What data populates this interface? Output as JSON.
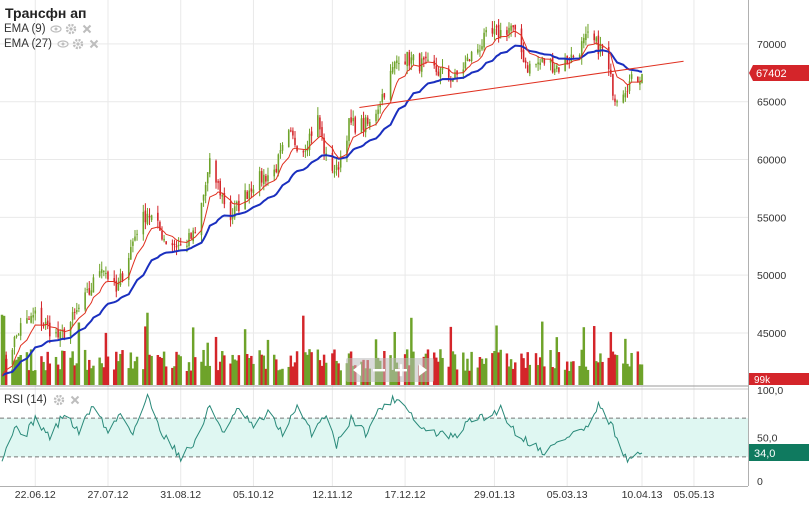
{
  "title": "Трансфн ап",
  "indicators": [
    {
      "label": "EMA (9)",
      "color": "#e03020"
    },
    {
      "label": "EMA (27)",
      "color": "#1a2fbf"
    }
  ],
  "rsi_label": "RSI (14)",
  "price_badge": "67402",
  "volume_badge": "99k",
  "rsi_badge": "34,0",
  "colors": {
    "up": "#6ea32a",
    "down": "#d4252a",
    "ema_fast": "#e03020",
    "ema_slow": "#1a2fbf",
    "rsi_line": "#2a8a7a",
    "rsi_band": "#dff7f2",
    "price_badge": "#d4252a",
    "rsi_badge": "#0f7a5f"
  },
  "chart_data": [
    {
      "type": "candlestick",
      "title": "Трансфн ап",
      "x_ticks": [
        "22.06.12",
        "27.07.12",
        "31.08.12",
        "05.10.12",
        "12.11.12",
        "17.12.12",
        "29.01.13",
        "05.03.13",
        "10.04.13",
        "05.05.13"
      ],
      "y_ticks": [
        45000,
        50000,
        55000,
        60000,
        65000,
        70000
      ],
      "ylim": [
        40500,
        73800
      ],
      "last_price": 67402,
      "series": [
        {
          "name": "EMA (9)"
        },
        {
          "name": "EMA (27)"
        }
      ],
      "close_keypoints": [
        [
          "06.06.12",
          42000
        ],
        [
          "15.06.12",
          45500
        ],
        [
          "22.06.12",
          46500
        ],
        [
          "04.07.12",
          44500
        ],
        [
          "18.07.12",
          48500
        ],
        [
          "24.07.12",
          51000
        ],
        [
          "31.07.12",
          48500
        ],
        [
          "10.08.12",
          54000
        ],
        [
          "15.08.12",
          55500
        ],
        [
          "24.08.12",
          53000
        ],
        [
          "31.08.12",
          52500
        ],
        [
          "07.09.12",
          53500
        ],
        [
          "14.09.12",
          59500
        ],
        [
          "24.09.12",
          55000
        ],
        [
          "05.10.12",
          58000
        ],
        [
          "15.10.12",
          59000
        ],
        [
          "22.10.12",
          62000
        ],
        [
          "29.10.12",
          61000
        ],
        [
          "05.11.12",
          63500
        ],
        [
          "09.11.12",
          60000
        ],
        [
          "14.11.12",
          59000
        ],
        [
          "20.11.12",
          63000
        ],
        [
          "30.11.12",
          63000
        ],
        [
          "07.12.12",
          66000
        ],
        [
          "14.12.12",
          69000
        ],
        [
          "21.12.12",
          68500
        ],
        [
          "28.12.12",
          68000
        ],
        [
          "10.01.13",
          67000
        ],
        [
          "18.01.13",
          69000
        ],
        [
          "25.01.13",
          70500
        ],
        [
          "01.02.13",
          71000
        ],
        [
          "06.02.13",
          71500
        ],
        [
          "14.02.13",
          68000
        ],
        [
          "22.02.13",
          68500
        ],
        [
          "01.03.13",
          68000
        ],
        [
          "08.03.13",
          69000
        ],
        [
          "15.03.13",
          70500
        ],
        [
          "22.03.13",
          69500
        ],
        [
          "28.03.13",
          65500
        ],
        [
          "03.04.13",
          66500
        ],
        [
          "10.04.13",
          67402
        ]
      ],
      "trendline": {
        "from": [
          "25.11.12",
          64500
        ],
        "to": [
          "30.04.13",
          68500
        ]
      }
    },
    {
      "type": "bar",
      "title": "Volume",
      "last_value": "99k"
    },
    {
      "type": "line",
      "title": "RSI (14)",
      "y_ticks": [
        "0",
        "50,0",
        "100,0"
      ],
      "ylim": [
        0,
        100
      ],
      "guides": [
        30,
        70
      ],
      "band": [
        30,
        70
      ],
      "last_value": 34.0,
      "keypoints": [
        [
          "06.06.12",
          30
        ],
        [
          "12.06.12",
          60
        ],
        [
          "18.06.12",
          55
        ],
        [
          "22.06.12",
          70
        ],
        [
          "29.06.12",
          50
        ],
        [
          "06.07.12",
          75
        ],
        [
          "13.07.12",
          55
        ],
        [
          "20.07.12",
          85
        ],
        [
          "27.07.12",
          55
        ],
        [
          "02.08.12",
          75
        ],
        [
          "08.08.12",
          55
        ],
        [
          "15.08.12",
          92
        ],
        [
          "22.08.12",
          55
        ],
        [
          "31.08.12",
          30
        ],
        [
          "07.09.12",
          45
        ],
        [
          "14.09.12",
          82
        ],
        [
          "21.09.12",
          55
        ],
        [
          "28.09.12",
          80
        ],
        [
          "05.10.12",
          60
        ],
        [
          "12.10.12",
          75
        ],
        [
          "19.10.12",
          55
        ],
        [
          "26.10.12",
          80
        ],
        [
          "02.11.12",
          55
        ],
        [
          "09.11.12",
          75
        ],
        [
          "14.11.12",
          42
        ],
        [
          "21.11.12",
          70
        ],
        [
          "28.11.12",
          55
        ],
        [
          "05.12.12",
          80
        ],
        [
          "12.12.12",
          90
        ],
        [
          "17.12.12",
          85
        ],
        [
          "24.12.12",
          60
        ],
        [
          "31.12.12",
          55
        ],
        [
          "10.01.13",
          50
        ],
        [
          "18.01.13",
          70
        ],
        [
          "25.01.13",
          70
        ],
        [
          "01.02.13",
          80
        ],
        [
          "08.02.13",
          55
        ],
        [
          "15.02.13",
          45
        ],
        [
          "22.02.13",
          35
        ],
        [
          "01.03.13",
          45
        ],
        [
          "08.03.13",
          55
        ],
        [
          "15.03.13",
          60
        ],
        [
          "20.03.13",
          82
        ],
        [
          "27.03.13",
          60
        ],
        [
          "01.04.13",
          30
        ],
        [
          "05.04.13",
          25
        ],
        [
          "10.04.13",
          34
        ]
      ]
    }
  ]
}
